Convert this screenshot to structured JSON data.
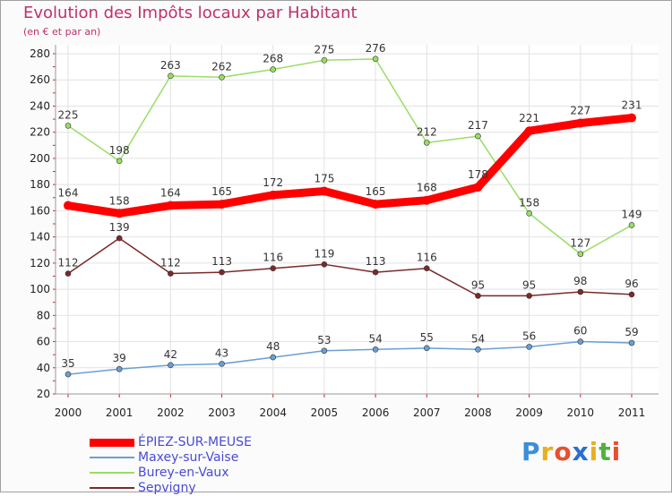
{
  "title": "Evolution des Impôts locaux par Habitant",
  "subtitle": "(en € et par an)",
  "logo_text": "Proxiti",
  "chart_data": {
    "type": "line",
    "title": "Evolution des Impôts locaux par Habitant",
    "subtitle": "(en € et par an)",
    "xlabel": "",
    "ylabel": "",
    "ylim": [
      20,
      280
    ],
    "yticks": [
      20,
      40,
      60,
      80,
      100,
      120,
      140,
      160,
      180,
      200,
      220,
      240,
      260,
      280
    ],
    "categories": [
      "2000",
      "2001",
      "2002",
      "2003",
      "2004",
      "2005",
      "2006",
      "2007",
      "2008",
      "2009",
      "2010",
      "2011"
    ],
    "grid": true,
    "legend_position": "bottom-left",
    "series": [
      {
        "name": "ÉPIEZ-SUR-MEUSE",
        "color": "#ff0000",
        "values": [
          164,
          158,
          164,
          165,
          172,
          175,
          165,
          168,
          178,
          221,
          227,
          231
        ]
      },
      {
        "name": "Maxey-sur-Vaise",
        "color": "#6a9fd4",
        "values": [
          35,
          39,
          42,
          43,
          48,
          53,
          54,
          55,
          54,
          56,
          60,
          59
        ]
      },
      {
        "name": "Burey-en-Vaux",
        "color": "#99dd66",
        "values": [
          225,
          198,
          263,
          262,
          268,
          275,
          276,
          212,
          217,
          158,
          127,
          149
        ]
      },
      {
        "name": "Sepvigny",
        "color": "#7a2a2a",
        "values": [
          112,
          139,
          112,
          113,
          116,
          119,
          113,
          116,
          95,
          95,
          98,
          96
        ]
      }
    ]
  }
}
